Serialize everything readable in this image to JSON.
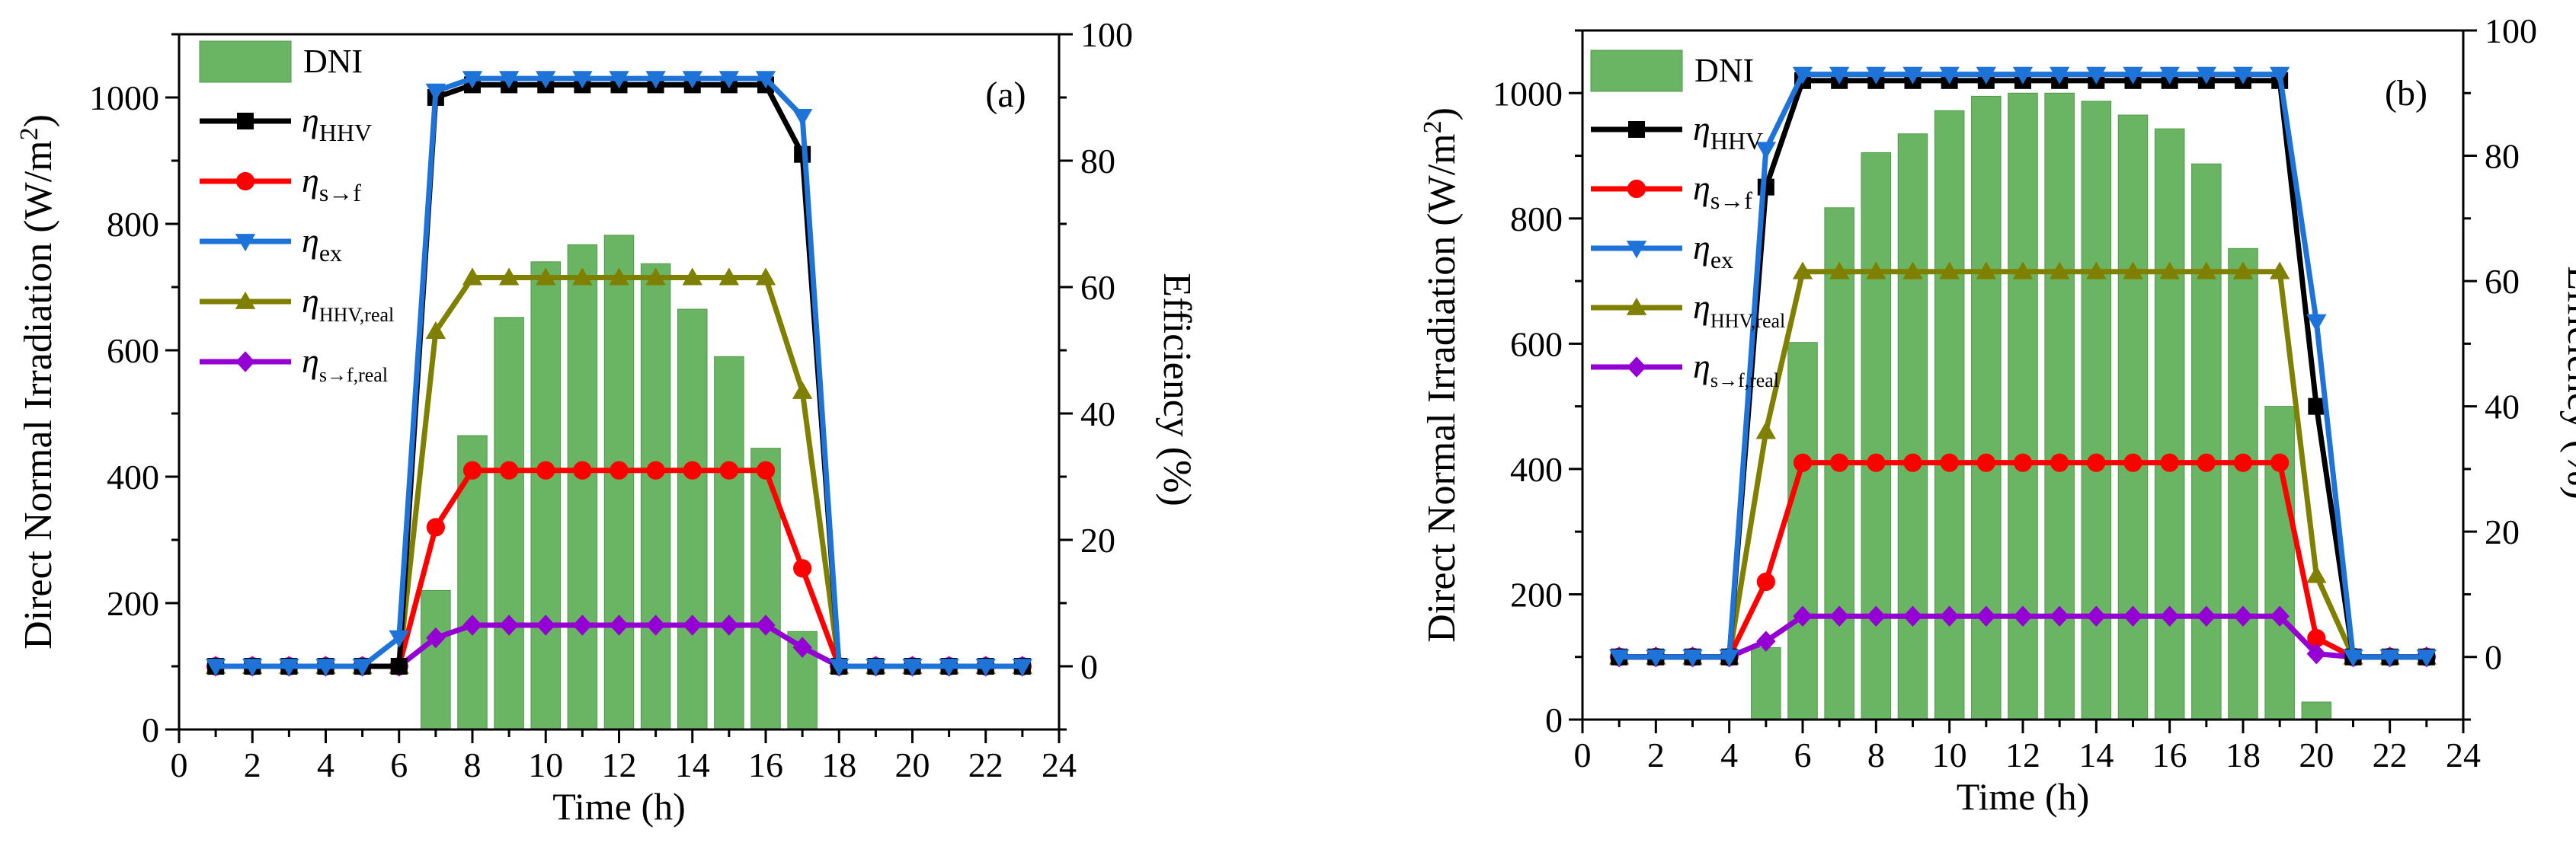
{
  "colors": {
    "bar": "#6ab563",
    "bar_edge": "#4e9a48",
    "hhv": "#000000",
    "sf": "#ff0000",
    "ex": "#1e73d8",
    "hhv_real": "#808000",
    "sf_real": "#9400d3"
  },
  "legend": {
    "dni": "DNI",
    "eta": "η",
    "hhv": "HHV",
    "sf": "s→f",
    "ex": "ex",
    "hhv_real": "HHV,real",
    "sf_real": "s→f,real"
  },
  "chart_data": [
    {
      "type": "bar+line",
      "panel_label": "(a)",
      "xlabel": "Time (h)",
      "ylabel_left": "Direct Normal Irradiation (W/m",
      "ylabel_left_sup": "2",
      "ylabel_left_end": ")",
      "ylabel_right": "Efficiency (%)",
      "xlim": [
        0,
        24
      ],
      "ylim_left": [
        0,
        1100
      ],
      "ylim_right": [
        -10,
        100
      ],
      "x_ticks": [
        "0",
        "2",
        "4",
        "6",
        "8",
        "10",
        "12",
        "14",
        "16",
        "18",
        "20",
        "22",
        "24"
      ],
      "y_left_ticks": [
        "0",
        "200",
        "400",
        "600",
        "800",
        "1000"
      ],
      "y_right_ticks": [
        "0",
        "20",
        "40",
        "60",
        "80",
        "100"
      ],
      "dni": {
        "x": [
          7,
          8,
          9,
          10,
          11,
          12,
          13,
          14,
          15,
          16,
          17
        ],
        "values": [
          220,
          465,
          652,
          740,
          767,
          782,
          737,
          665,
          590,
          445,
          155
        ]
      },
      "hours": [
        1,
        2,
        3,
        4,
        5,
        6,
        7,
        8,
        9,
        10,
        11,
        12,
        13,
        14,
        15,
        16,
        17,
        18,
        19,
        20,
        21,
        22,
        23
      ],
      "series": [
        {
          "key": "hhv_real",
          "name": "η HHV,real",
          "marker": "triangle-up",
          "values": [
            0,
            0,
            0,
            0,
            0,
            0,
            53,
            61.5,
            61.5,
            61.5,
            61.5,
            61.5,
            61.5,
            61.5,
            61.5,
            61.5,
            43.5,
            0,
            0,
            0,
            0,
            0,
            0
          ]
        },
        {
          "key": "sf",
          "name": "η s→f",
          "marker": "circle",
          "values": [
            0,
            0,
            0,
            0,
            0,
            0,
            22,
            31,
            31,
            31,
            31,
            31,
            31,
            31,
            31,
            31,
            15.5,
            0,
            0,
            0,
            0,
            0,
            0
          ]
        },
        {
          "key": "sf_real",
          "name": "η s→f,real",
          "marker": "diamond",
          "values": [
            0,
            0,
            0,
            0,
            0,
            0,
            4.5,
            6.5,
            6.5,
            6.5,
            6.5,
            6.5,
            6.5,
            6.5,
            6.5,
            6.5,
            3,
            0,
            0,
            0,
            0,
            0,
            0
          ]
        },
        {
          "key": "hhv",
          "name": "η HHV",
          "marker": "square",
          "values": [
            0,
            0,
            0,
            0,
            0,
            0,
            90,
            92,
            92,
            92,
            92,
            92,
            92,
            92,
            92,
            92,
            81,
            0,
            0,
            0,
            0,
            0,
            0
          ]
        },
        {
          "key": "ex",
          "name": "η ex",
          "marker": "triangle-down",
          "values": [
            0,
            0,
            0,
            0,
            0,
            4.5,
            91,
            93,
            93,
            93,
            93,
            93,
            93,
            93,
            93,
            93,
            87,
            0,
            0,
            0,
            0,
            0,
            0
          ]
        }
      ]
    },
    {
      "type": "bar+line",
      "panel_label": "(b)",
      "xlabel": "Time (h)",
      "ylabel_left": "Direct Normal Irradiation (W/m",
      "ylabel_left_sup": "2",
      "ylabel_left_end": ")",
      "ylabel_right": "Efficiency (%)",
      "xlim": [
        0,
        24
      ],
      "ylim_left": [
        0,
        1100
      ],
      "ylim_right": [
        -10,
        100
      ],
      "x_ticks": [
        "0",
        "2",
        "4",
        "6",
        "8",
        "10",
        "12",
        "14",
        "16",
        "18",
        "20",
        "22",
        "24"
      ],
      "y_left_ticks": [
        "0",
        "200",
        "400",
        "600",
        "800",
        "1000"
      ],
      "y_right_ticks": [
        "0",
        "20",
        "40",
        "60",
        "80",
        "100"
      ],
      "dni": {
        "x": [
          5,
          6,
          7,
          8,
          9,
          10,
          11,
          12,
          13,
          14,
          15,
          16,
          17,
          18,
          19,
          20
        ],
        "values": [
          115,
          602,
          817,
          905,
          935,
          972,
          995,
          1000,
          1000,
          987,
          965,
          943,
          887,
          752,
          500,
          28
        ]
      },
      "hours": [
        1,
        2,
        3,
        4,
        5,
        6,
        7,
        8,
        9,
        10,
        11,
        12,
        13,
        14,
        15,
        16,
        17,
        18,
        19,
        20,
        21,
        22,
        23
      ],
      "series": [
        {
          "key": "hhv_real",
          "name": "η HHV,real",
          "marker": "triangle-up",
          "values": [
            0,
            0,
            0,
            0,
            36,
            61.5,
            61.5,
            61.5,
            61.5,
            61.5,
            61.5,
            61.5,
            61.5,
            61.5,
            61.5,
            61.5,
            61.5,
            61.5,
            61.5,
            13,
            0,
            0,
            0
          ]
        },
        {
          "key": "sf",
          "name": "η s→f",
          "marker": "circle",
          "values": [
            0,
            0,
            0,
            0,
            12,
            31,
            31,
            31,
            31,
            31,
            31,
            31,
            31,
            31,
            31,
            31,
            31,
            31,
            31,
            3,
            0,
            0,
            0
          ]
        },
        {
          "key": "sf_real",
          "name": "η s→f,real",
          "marker": "diamond",
          "values": [
            0,
            0,
            0,
            0,
            2.5,
            6.5,
            6.5,
            6.5,
            6.5,
            6.5,
            6.5,
            6.5,
            6.5,
            6.5,
            6.5,
            6.5,
            6.5,
            6.5,
            6.5,
            0.5,
            0,
            0,
            0
          ]
        },
        {
          "key": "hhv",
          "name": "η HHV",
          "marker": "square",
          "values": [
            0,
            0,
            0,
            0,
            75,
            92,
            92,
            92,
            92,
            92,
            92,
            92,
            92,
            92,
            92,
            92,
            92,
            92,
            92,
            40,
            0,
            0,
            0
          ]
        },
        {
          "key": "ex",
          "name": "η ex",
          "marker": "triangle-down",
          "values": [
            0,
            0,
            0,
            0,
            81,
            93,
            93,
            93,
            93,
            93,
            93,
            93,
            93,
            93,
            93,
            93,
            93,
            93,
            93,
            53.5,
            0,
            0,
            0
          ]
        }
      ]
    }
  ]
}
